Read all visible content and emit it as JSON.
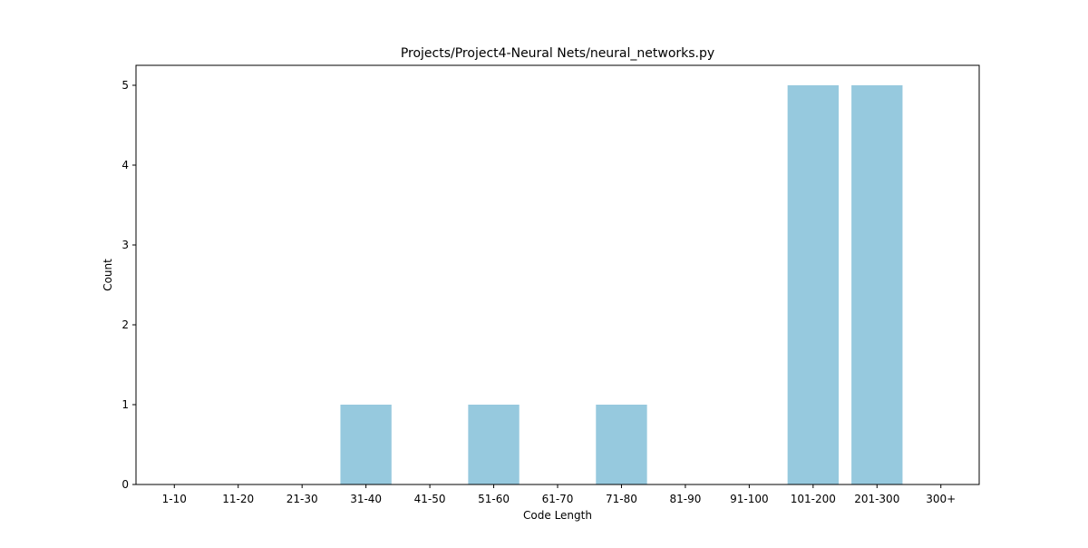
{
  "chart_data": {
    "type": "bar",
    "title": "Projects/Project4-Neural Nets/neural_networks.py",
    "xlabel": "Code Length",
    "ylabel": "Count",
    "categories": [
      "1-10",
      "11-20",
      "21-30",
      "31-40",
      "41-50",
      "51-60",
      "61-70",
      "71-80",
      "81-90",
      "91-100",
      "101-200",
      "201-300",
      "300+"
    ],
    "values": [
      0,
      0,
      0,
      1,
      0,
      1,
      0,
      1,
      0,
      0,
      5,
      5,
      0
    ],
    "ylim": [
      0,
      5.25
    ],
    "yticks": [
      0,
      1,
      2,
      3,
      4,
      5
    ],
    "bar_color": "#96c9de",
    "grid": false,
    "legend": "none"
  }
}
